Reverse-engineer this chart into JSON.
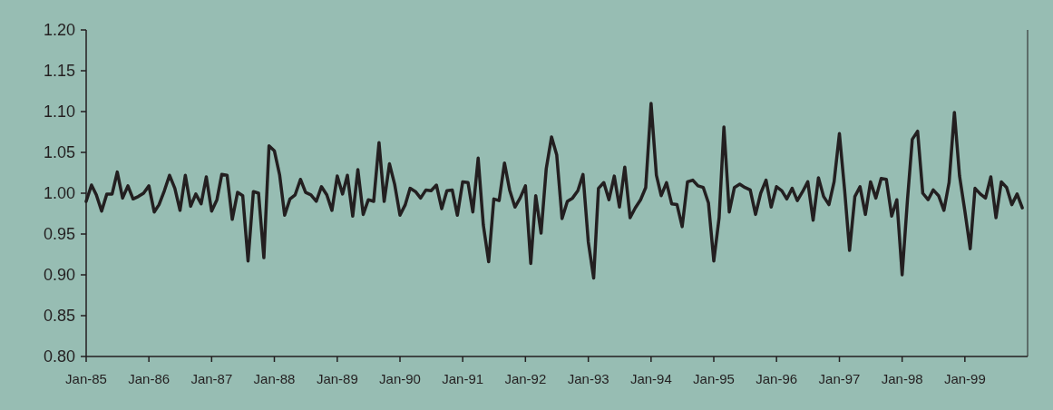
{
  "chart_data": {
    "type": "line",
    "x": [
      "1985-01",
      "1985-02",
      "1985-03",
      "1985-04",
      "1985-05",
      "1985-06",
      "1985-07",
      "1985-08",
      "1985-09",
      "1985-10",
      "1985-11",
      "1985-12",
      "1986-01",
      "1986-02",
      "1986-03",
      "1986-04",
      "1986-05",
      "1986-06",
      "1986-07",
      "1986-08",
      "1986-09",
      "1986-10",
      "1986-11",
      "1986-12",
      "1987-01",
      "1987-02",
      "1987-03",
      "1987-04",
      "1987-05",
      "1987-06",
      "1987-07",
      "1987-08",
      "1987-09",
      "1987-10",
      "1987-11",
      "1987-12",
      "1988-01",
      "1988-02",
      "1988-03",
      "1988-04",
      "1988-05",
      "1988-06",
      "1988-07",
      "1988-08",
      "1988-09",
      "1988-10",
      "1988-11",
      "1988-12",
      "1989-01",
      "1989-02",
      "1989-03",
      "1989-04",
      "1989-05",
      "1989-06",
      "1989-07",
      "1989-08",
      "1989-09",
      "1989-10",
      "1989-11",
      "1989-12",
      "1990-01",
      "1990-02",
      "1990-03",
      "1990-04",
      "1990-05",
      "1990-06",
      "1990-07",
      "1990-08",
      "1990-09",
      "1990-10",
      "1990-11",
      "1990-12",
      "1991-01",
      "1991-02",
      "1991-03",
      "1991-04",
      "1991-05",
      "1991-06",
      "1991-07",
      "1991-08",
      "1991-09",
      "1991-10",
      "1991-11",
      "1991-12",
      "1992-01",
      "1992-02",
      "1992-03",
      "1992-04",
      "1992-05",
      "1992-06",
      "1992-07",
      "1992-08",
      "1992-09",
      "1992-10",
      "1992-11",
      "1992-12",
      "1993-01",
      "1993-02",
      "1993-03",
      "1993-04",
      "1993-05",
      "1993-06",
      "1993-07",
      "1993-08",
      "1993-09",
      "1993-10",
      "1993-11",
      "1993-12",
      "1994-01",
      "1994-02",
      "1994-03",
      "1994-04",
      "1994-05",
      "1994-06",
      "1994-07",
      "1994-08",
      "1994-09",
      "1994-10",
      "1994-11",
      "1994-12",
      "1995-01",
      "1995-02",
      "1995-03",
      "1995-04",
      "1995-05",
      "1995-06",
      "1995-07",
      "1995-08",
      "1995-09",
      "1995-10",
      "1995-11",
      "1995-12",
      "1996-01",
      "1996-02",
      "1996-03",
      "1996-04",
      "1996-05",
      "1996-06",
      "1996-07",
      "1996-08",
      "1996-09",
      "1996-10",
      "1996-11",
      "1996-12",
      "1997-01",
      "1997-02",
      "1997-03",
      "1997-04",
      "1997-05",
      "1997-06",
      "1997-07",
      "1997-08",
      "1997-09",
      "1997-10",
      "1997-11",
      "1997-12",
      "1998-01",
      "1998-02",
      "1998-03",
      "1998-04",
      "1998-05",
      "1998-06",
      "1998-07",
      "1998-08",
      "1998-09",
      "1998-10",
      "1998-11",
      "1998-12",
      "1999-01",
      "1999-02",
      "1999-03",
      "1999-04",
      "1999-05",
      "1999-06",
      "1999-07",
      "1999-08",
      "1999-09",
      "1999-10",
      "1999-11",
      "1999-12"
    ],
    "series": [
      {
        "color": "#231f20",
        "values": [
          0.99,
          1.01,
          0.998,
          0.978,
          0.999,
          0.999,
          1.026,
          0.994,
          1.009,
          0.993,
          0.996,
          1.0,
          1.009,
          0.977,
          0.986,
          1.003,
          1.022,
          1.006,
          0.979,
          1.022,
          0.984,
          0.999,
          0.987,
          1.02,
          0.978,
          0.992,
          1.023,
          1.022,
          0.968,
          1.001,
          0.997,
          0.917,
          1.002,
          1.0,
          0.921,
          1.058,
          1.052,
          1.022,
          0.973,
          0.993,
          0.998,
          1.017,
          1.001,
          0.998,
          0.99,
          1.008,
          0.998,
          0.979,
          1.021,
          0.999,
          1.022,
          0.972,
          1.029,
          0.974,
          0.992,
          0.99,
          1.062,
          0.99,
          1.036,
          1.011,
          0.973,
          0.986,
          1.006,
          1.002,
          0.994,
          1.004,
          1.003,
          1.01,
          0.981,
          1.003,
          1.004,
          0.973,
          1.014,
          1.013,
          0.977,
          1.043,
          0.961,
          0.916,
          0.993,
          0.991,
          1.037,
          1.004,
          0.983,
          0.994,
          1.009,
          0.914,
          0.997,
          0.951,
          1.03,
          1.069,
          1.047,
          0.969,
          0.99,
          0.994,
          1.003,
          1.023,
          0.94,
          0.896,
          1.006,
          1.013,
          0.992,
          1.021,
          0.983,
          1.032,
          0.97,
          0.982,
          0.992,
          1.007,
          1.11,
          1.022,
          0.997,
          1.013,
          0.987,
          0.986,
          0.959,
          1.014,
          1.016,
          1.009,
          1.007,
          0.988,
          0.917,
          0.97,
          1.081,
          0.977,
          1.007,
          1.011,
          1.007,
          1.004,
          0.974,
          1.0,
          1.016,
          0.983,
          1.008,
          1.003,
          0.993,
          1.006,
          0.991,
          1.002,
          1.014,
          0.967,
          1.019,
          0.996,
          0.986,
          1.014,
          1.073,
          1.002,
          0.93,
          0.996,
          1.008,
          0.974,
          1.014,
          0.994,
          1.018,
          1.017,
          0.972,
          0.992,
          0.9,
          0.992,
          1.066,
          1.076,
          1.0,
          0.992,
          1.004,
          0.997,
          0.979,
          1.013,
          1.099,
          1.021,
          0.978,
          0.932,
          1.006,
          0.999,
          0.994,
          1.02,
          0.97,
          1.014,
          1.007,
          0.986,
          0.999,
          0.982
        ]
      }
    ],
    "xlim": [
      "1985-01",
      "2000-01"
    ],
    "xticks": [
      {
        "value": "1985-01",
        "label": "Jan-85"
      },
      {
        "value": "1986-01",
        "label": "Jan-86"
      },
      {
        "value": "1987-01",
        "label": "Jan-87"
      },
      {
        "value": "1988-01",
        "label": "Jan-88"
      },
      {
        "value": "1989-01",
        "label": "Jan-89"
      },
      {
        "value": "1990-01",
        "label": "Jan-90"
      },
      {
        "value": "1991-01",
        "label": "Jan-91"
      },
      {
        "value": "1992-01",
        "label": "Jan-92"
      },
      {
        "value": "1993-01",
        "label": "Jan-93"
      },
      {
        "value": "1994-01",
        "label": "Jan-94"
      },
      {
        "value": "1995-01",
        "label": "Jan-95"
      },
      {
        "value": "1996-01",
        "label": "Jan-96"
      },
      {
        "value": "1997-01",
        "label": "Jan-97"
      },
      {
        "value": "1998-01",
        "label": "Jan-98"
      },
      {
        "value": "1999-01",
        "label": "Jan-99"
      }
    ],
    "ylim": [
      0.8,
      1.2
    ],
    "yticks": [
      {
        "value": 0.8,
        "label": "0.80"
      },
      {
        "value": 0.85,
        "label": "0.85"
      },
      {
        "value": 0.9,
        "label": "0.90"
      },
      {
        "value": 0.95,
        "label": "0.95"
      },
      {
        "value": 1.0,
        "label": "1.00"
      },
      {
        "value": 1.05,
        "label": "1.05"
      },
      {
        "value": 1.1,
        "label": "1.10"
      },
      {
        "value": 1.15,
        "label": "1.15"
      },
      {
        "value": 1.2,
        "label": "1.20"
      }
    ],
    "grid": false,
    "marker": "none",
    "line_style": "solid"
  }
}
